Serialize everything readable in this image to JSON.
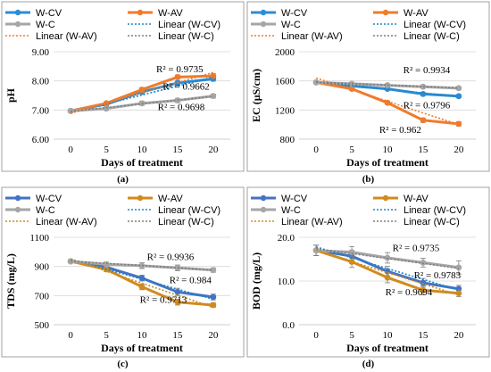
{
  "chart_data": [
    {
      "id": "a",
      "type": "line",
      "caption": "(a)",
      "xlabel": "Days of treatment",
      "ylabel": "pH",
      "x": [
        0,
        5,
        10,
        15,
        20
      ],
      "ylim": [
        6.0,
        9.0
      ],
      "yticks": [
        6.0,
        7.0,
        8.0,
        9.0
      ],
      "ytick_labels": [
        "6.00",
        "7.00",
        "8.00",
        "9.00"
      ],
      "series": [
        {
          "name": "W-CV",
          "color": "#2e8bd4",
          "values": [
            6.97,
            7.2,
            7.62,
            7.93,
            8.07
          ],
          "error": [
            0.05,
            0.06,
            0.07,
            0.07,
            0.08
          ]
        },
        {
          "name": "W-AV",
          "color": "#f07b2b",
          "values": [
            6.97,
            7.23,
            7.7,
            8.13,
            8.17
          ],
          "error": [
            0.05,
            0.06,
            0.07,
            0.07,
            0.08
          ]
        },
        {
          "name": "W-C",
          "color": "#a6a6a6",
          "values": [
            6.97,
            7.05,
            7.23,
            7.33,
            7.48
          ],
          "error": [
            0.05,
            0.06,
            0.07,
            0.07,
            0.07
          ]
        }
      ],
      "trendlines": [
        {
          "name": "Linear (W-CV)",
          "color": "#1a87c9",
          "start": 6.9,
          "end": 8.13
        },
        {
          "name": "Linear (W-AV)",
          "color": "#f07b2b",
          "start": 6.89,
          "end": 8.29
        },
        {
          "name": "Linear (W-C)",
          "color": "#7f7f7f",
          "start": 6.95,
          "end": 7.47
        }
      ],
      "annotations": [
        {
          "text": "R² = 0.9735",
          "x": 15.3,
          "y": 8.3
        },
        {
          "text": "R² = 0.9662",
          "x": 16.2,
          "y": 7.7
        },
        {
          "text": "R² = 0.9698",
          "x": 15.5,
          "y": 7.0
        }
      ]
    },
    {
      "id": "b",
      "type": "line",
      "caption": "(b)",
      "xlabel": "Days of treatment",
      "ylabel": "EC (µS/cm)",
      "x": [
        0,
        5,
        10,
        15,
        20
      ],
      "ylim": [
        800,
        2000
      ],
      "yticks": [
        800,
        1200,
        1600,
        2000
      ],
      "ytick_labels": [
        "800",
        "1200",
        "1600",
        "2000"
      ],
      "series": [
        {
          "name": "W-CV",
          "color": "#2e8bd4",
          "values": [
            1580,
            1530,
            1490,
            1420,
            1390
          ],
          "error": [
            18,
            18,
            18,
            18,
            18
          ]
        },
        {
          "name": "W-AV",
          "color": "#f07b2b",
          "values": [
            1580,
            1490,
            1300,
            1060,
            1010
          ],
          "error": [
            18,
            20,
            22,
            30,
            30
          ]
        },
        {
          "name": "W-C",
          "color": "#a6a6a6",
          "values": [
            1580,
            1560,
            1540,
            1520,
            1500
          ],
          "error": [
            18,
            18,
            18,
            18,
            18
          ]
        }
      ],
      "trendlines": [
        {
          "name": "Linear (W-CV)",
          "color": "#1a87c9",
          "start": 1585,
          "end": 1385
        },
        {
          "name": "Linear (W-AV)",
          "color": "#f07b2b",
          "start": 1640,
          "end": 1000
        },
        {
          "name": "Linear (W-C)",
          "color": "#7f7f7f",
          "start": 1582,
          "end": 1502
        }
      ],
      "annotations": [
        {
          "text": "R² = 0.9934",
          "x": 15.5,
          "y": 1705
        },
        {
          "text": "R² = 0.9796",
          "x": 15.5,
          "y": 1220
        },
        {
          "text": "R² = 0.962",
          "x": 11.8,
          "y": 885
        }
      ]
    },
    {
      "id": "c",
      "type": "line",
      "caption": "(c)",
      "xlabel": "Days of treatment",
      "ylabel": "TDS (mg/L)",
      "x": [
        0,
        5,
        10,
        15,
        20
      ],
      "ylim": [
        500,
        1100
      ],
      "yticks": [
        500,
        700,
        900,
        1100
      ],
      "ytick_labels": [
        "500",
        "700",
        "900",
        "1100"
      ],
      "series": [
        {
          "name": "W-CV",
          "color": "#4472c4",
          "values": [
            935,
            895,
            820,
            725,
            690
          ],
          "error": [
            10,
            15,
            20,
            25,
            20
          ]
        },
        {
          "name": "W-AV",
          "color": "#d08b1e",
          "values": [
            935,
            880,
            760,
            655,
            635
          ],
          "error": [
            10,
            15,
            20,
            20,
            15
          ]
        },
        {
          "name": "W-C",
          "color": "#a6a6a6",
          "values": [
            935,
            915,
            905,
            890,
            875
          ],
          "error": [
            10,
            15,
            20,
            20,
            15
          ]
        }
      ],
      "trendlines": [
        {
          "name": "Linear (W-CV)",
          "color": "#1a87c9",
          "start": 950,
          "end": 675
        },
        {
          "name": "Linear (W-AV)",
          "color": "#d08b1e",
          "start": 950,
          "end": 620
        },
        {
          "name": "Linear (W-C)",
          "color": "#7f7f7f",
          "start": 937,
          "end": 875
        }
      ],
      "annotations": [
        {
          "text": "R² = 0.9936",
          "x": 14.0,
          "y": 945
        },
        {
          "text": "R² = 0.984",
          "x": 16.8,
          "y": 785
        },
        {
          "text": "R² = 0.9713",
          "x": 13.0,
          "y": 650
        }
      ]
    },
    {
      "id": "d",
      "type": "line",
      "caption": "(d)",
      "xlabel": "Days of treatment",
      "ylabel": "BOD (mg/L)",
      "x": [
        0,
        5,
        10,
        15,
        20
      ],
      "ylim": [
        0,
        20
      ],
      "yticks": [
        0,
        10,
        20
      ],
      "ytick_labels": [
        "0.0",
        "10.0",
        "20.0"
      ],
      "series": [
        {
          "name": "W-CV",
          "color": "#4472c4",
          "values": [
            17.0,
            15.7,
            12.2,
            9.6,
            8.2
          ],
          "error": [
            1.2,
            1.3,
            1.2,
            1.0,
            0.8
          ]
        },
        {
          "name": "W-AV",
          "color": "#d08b1e",
          "values": [
            17.0,
            14.4,
            10.8,
            7.9,
            7.2
          ],
          "error": [
            1.2,
            1.3,
            1.2,
            1.0,
            0.8
          ]
        },
        {
          "name": "W-C",
          "color": "#a6a6a6",
          "values": [
            17.0,
            16.6,
            15.3,
            14.2,
            13.1
          ],
          "error": [
            1.2,
            1.3,
            1.2,
            1.0,
            1.5
          ]
        }
      ],
      "trendlines": [
        {
          "name": "Linear (W-CV)",
          "color": "#1a87c9",
          "start": 17.8,
          "end": 7.9
        },
        {
          "name": "Linear (W-AV)",
          "color": "#d08b1e",
          "start": 17.0,
          "end": 6.8
        },
        {
          "name": "Linear (W-C)",
          "color": "#7f7f7f",
          "start": 17.4,
          "end": 12.9
        }
      ],
      "annotations": [
        {
          "text": "R² = 0.9735",
          "x": 14.0,
          "y": 16.8
        },
        {
          "text": "R² = 0.9783",
          "x": 17.0,
          "y": 10.6
        },
        {
          "text": "R² = 0.9694",
          "x": 13.0,
          "y": 6.7
        }
      ]
    }
  ]
}
